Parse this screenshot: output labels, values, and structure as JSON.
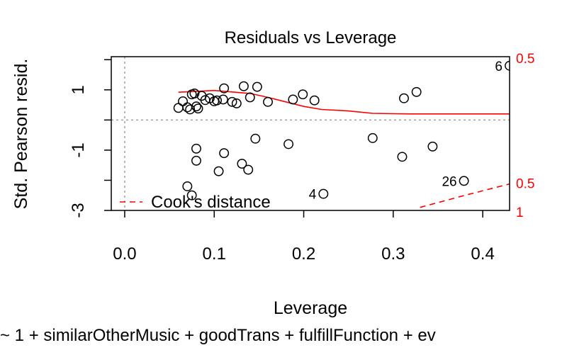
{
  "chart_data": {
    "type": "scatter",
    "title": "Residuals vs Leverage",
    "xlabel": "Leverage",
    "ylabel": "Std. Pearson resid.",
    "subtitle": "~ 1 + similarOtherMusic + goodTrans + fulfillFunction + ev",
    "xlim": [
      -0.015,
      0.43
    ],
    "ylim": [
      -3.0,
      2.1
    ],
    "x_ticks": [
      0.0,
      0.1,
      0.2,
      0.3,
      0.4
    ],
    "x_tick_labels": [
      "0.0",
      "0.1",
      "0.2",
      "0.3",
      "0.4"
    ],
    "y_ticks": [
      -3,
      -2,
      -1,
      0,
      1,
      2
    ],
    "y_tick_labels": [
      "-3",
      "",
      "-1",
      "",
      "1",
      ""
    ],
    "reference_lines": {
      "x": 0,
      "y": 0,
      "style": "dotted",
      "color": "#a0a0a0"
    },
    "points": [
      {
        "x": 0.06,
        "y": 0.4
      },
      {
        "x": 0.065,
        "y": 0.62
      },
      {
        "x": 0.075,
        "y": 0.85
      },
      {
        "x": 0.078,
        "y": 0.88
      },
      {
        "x": 0.08,
        "y": 0.45
      },
      {
        "x": 0.082,
        "y": 0.38
      },
      {
        "x": 0.086,
        "y": 0.8
      },
      {
        "x": 0.09,
        "y": 0.66
      },
      {
        "x": 0.095,
        "y": 0.72
      },
      {
        "x": 0.1,
        "y": 0.62
      },
      {
        "x": 0.11,
        "y": 0.68
      },
      {
        "x": 0.111,
        "y": 1.05
      },
      {
        "x": 0.12,
        "y": 0.6
      },
      {
        "x": 0.125,
        "y": 0.55
      },
      {
        "x": 0.133,
        "y": 1.12
      },
      {
        "x": 0.14,
        "y": 0.75
      },
      {
        "x": 0.148,
        "y": 1.1
      },
      {
        "x": 0.16,
        "y": 0.6
      },
      {
        "x": 0.188,
        "y": 0.68
      },
      {
        "x": 0.199,
        "y": 0.85
      },
      {
        "x": 0.212,
        "y": 0.65
      },
      {
        "x": 0.07,
        "y": 0.42
      },
      {
        "x": 0.073,
        "y": 0.35
      },
      {
        "x": 0.103,
        "y": 0.65
      },
      {
        "x": 0.146,
        "y": -0.62
      },
      {
        "x": 0.183,
        "y": -0.8
      },
      {
        "x": 0.08,
        "y": -0.95
      },
      {
        "x": 0.08,
        "y": -1.35
      },
      {
        "x": 0.111,
        "y": -1.1
      },
      {
        "x": 0.131,
        "y": -1.45
      },
      {
        "x": 0.138,
        "y": -1.65
      },
      {
        "x": 0.105,
        "y": -1.7
      },
      {
        "x": 0.07,
        "y": -2.2
      },
      {
        "x": 0.075,
        "y": -2.5
      },
      {
        "x": 0.222,
        "y": -2.45
      },
      {
        "x": 0.277,
        "y": -0.6
      },
      {
        "x": 0.31,
        "y": -1.22
      },
      {
        "x": 0.312,
        "y": 0.72
      },
      {
        "x": 0.326,
        "y": 0.93
      },
      {
        "x": 0.344,
        "y": -0.88
      },
      {
        "x": 0.379,
        "y": -2.02
      },
      {
        "x": 0.43,
        "y": 1.8
      }
    ],
    "point_labels": [
      {
        "text": "6",
        "x": 0.43,
        "y": 1.8
      },
      {
        "text": "26",
        "x": 0.379,
        "y": -2.02
      },
      {
        "text": "4",
        "x": 0.222,
        "y": -2.45
      }
    ],
    "smooth_line": {
      "color": "#ff0000",
      "points": [
        {
          "x": 0.06,
          "y": 0.92
        },
        {
          "x": 0.08,
          "y": 0.95
        },
        {
          "x": 0.1,
          "y": 0.98
        },
        {
          "x": 0.12,
          "y": 0.93
        },
        {
          "x": 0.14,
          "y": 0.88
        },
        {
          "x": 0.16,
          "y": 0.75
        },
        {
          "x": 0.18,
          "y": 0.6
        },
        {
          "x": 0.2,
          "y": 0.45
        },
        {
          "x": 0.22,
          "y": 0.35
        },
        {
          "x": 0.25,
          "y": 0.3
        },
        {
          "x": 0.277,
          "y": 0.22
        },
        {
          "x": 0.32,
          "y": 0.2
        },
        {
          "x": 0.38,
          "y": 0.2
        },
        {
          "x": 0.43,
          "y": 0.2
        }
      ]
    },
    "cooks_contours": {
      "color": "#ff0000",
      "labels": [
        {
          "text": "0.5",
          "y": 2.05
        },
        {
          "text": "0.5",
          "y": -2.1
        },
        {
          "text": "1",
          "y": -3.05
        }
      ],
      "curves": [
        {
          "name": "upper-0.5",
          "points": [
            {
              "x": 0.405,
              "y": 2.3
            },
            {
              "x": 0.43,
              "y": 2.12
            }
          ]
        },
        {
          "name": "lower-0.5",
          "points": [
            {
              "x": 0.33,
              "y": -2.9
            },
            {
              "x": 0.38,
              "y": -2.5
            },
            {
              "x": 0.43,
              "y": -2.12
            }
          ]
        },
        {
          "name": "lower-1",
          "points": [
            {
              "x": 0.41,
              "y": -3.1
            },
            {
              "x": 0.43,
              "y": -3.02
            }
          ]
        }
      ]
    },
    "legend": {
      "position": "bottom-left",
      "entries": [
        {
          "label": "Cook's distance",
          "style": "dashed",
          "color": "#ff0000"
        }
      ]
    },
    "grid": false
  }
}
